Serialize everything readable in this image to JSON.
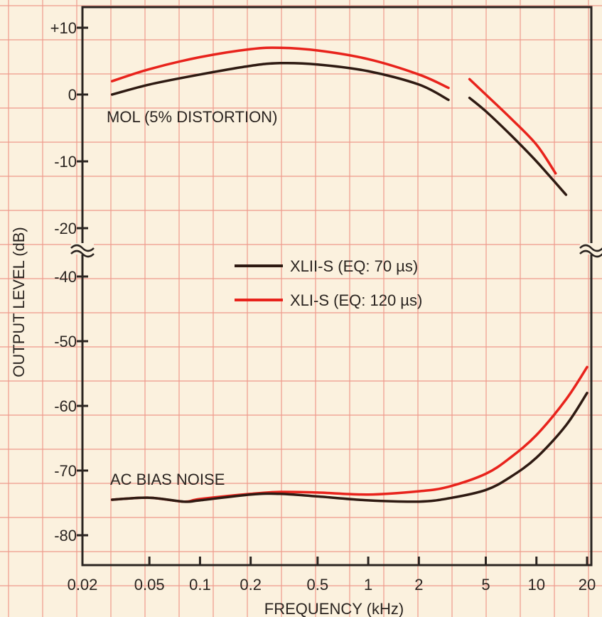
{
  "chart_data": {
    "type": "line",
    "xlabel": "FREQUENCY (kHz)",
    "ylabel": "OUTPUT LEVEL (dB)",
    "x_scale": "log",
    "xlim": [
      0.02,
      20
    ],
    "x_ticks": [
      "0.02",
      "0.05",
      "0.1",
      "0.2",
      "0.5",
      "1",
      "2",
      "5",
      "10",
      "20"
    ],
    "x_tick_values": [
      0.02,
      0.05,
      0.1,
      0.2,
      0.5,
      1,
      2,
      5,
      10,
      20
    ],
    "upper_panel": {
      "ylim": [
        -25,
        12
      ],
      "y_ticks": [
        "+10",
        "0",
        "-10",
        "-20"
      ],
      "y_tick_values": [
        10,
        0,
        -10,
        -20
      ],
      "annotation": "MOL (5% DISTORTION)"
    },
    "lower_panel": {
      "ylim": [
        -85,
        -36
      ],
      "y_ticks": [
        "-40",
        "-50",
        "-60",
        "-70",
        "-80"
      ],
      "y_tick_values": [
        -40,
        -50,
        -60,
        -70,
        -80
      ],
      "annotation": "AC BIAS NOISE"
    },
    "axis_break": true,
    "grid": true,
    "legend_position": "center",
    "series": [
      {
        "name": "XLII-S (EQ: 70 µs)",
        "color": "#2e1a12",
        "mol_segments": [
          {
            "x": [
              0.03,
              0.05,
              0.1,
              0.2,
              0.3,
              0.5,
              1,
              2,
              3
            ],
            "y": [
              0,
              1.5,
              3,
              4.3,
              4.7,
              4.5,
              3.5,
              1.5,
              -0.8
            ]
          },
          {
            "x": [
              4,
              5,
              7,
              10,
              15
            ],
            "y": [
              -0.5,
              -2.5,
              -6,
              -10,
              -15
            ]
          }
        ],
        "noise": {
          "x": [
            0.03,
            0.05,
            0.08,
            0.1,
            0.2,
            0.3,
            0.5,
            1,
            2,
            3,
            5,
            7,
            10,
            15,
            20
          ],
          "y": [
            -74.5,
            -74.2,
            -74.8,
            -74.6,
            -73.7,
            -73.6,
            -74,
            -74.6,
            -74.8,
            -74.3,
            -73,
            -71,
            -68,
            -63,
            -58
          ]
        }
      },
      {
        "name": "XLI-S (EQ: 120 µs)",
        "color": "#e8231c",
        "mol_segments": [
          {
            "x": [
              0.03,
              0.05,
              0.1,
              0.2,
              0.3,
              0.5,
              1,
              2,
              3
            ],
            "y": [
              2,
              3.8,
              5.6,
              6.8,
              7,
              6.6,
              5.3,
              3,
              1
            ]
          },
          {
            "x": [
              4,
              5,
              7,
              10,
              13
            ],
            "y": [
              2.3,
              0,
              -3.5,
              -7.5,
              -11.8
            ]
          }
        ],
        "noise": {
          "x": [
            0.03,
            0.05,
            0.08,
            0.1,
            0.2,
            0.3,
            0.5,
            1,
            2,
            3,
            5,
            7,
            10,
            15,
            20
          ],
          "y": [
            -74.5,
            -74.2,
            -74.8,
            -74.4,
            -73.6,
            -73.3,
            -73.4,
            -73.7,
            -73.2,
            -72.5,
            -70.5,
            -68,
            -64.5,
            -59,
            -54
          ]
        }
      }
    ]
  }
}
